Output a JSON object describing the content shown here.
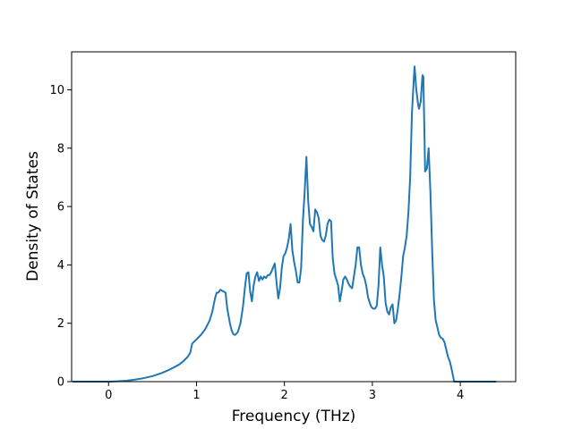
{
  "chart_data": {
    "type": "line",
    "title": "",
    "xlabel": "Frequency (THz)",
    "ylabel": "Density of States",
    "xlim": [
      -0.42,
      4.63
    ],
    "ylim": [
      0,
      11.3
    ],
    "xticks": [
      0,
      1,
      2,
      3,
      4
    ],
    "xtick_labels": [
      "0",
      "1",
      "2",
      "3",
      "4"
    ],
    "yticks": [
      0,
      2,
      4,
      6,
      8,
      10
    ],
    "ytick_labels": [
      "0",
      "2",
      "4",
      "6",
      "8",
      "10"
    ],
    "grid": false,
    "legend": "none",
    "series": [
      {
        "color": "#1f77b4",
        "points": [
          [
            -0.4,
            0.0
          ],
          [
            0.0,
            0.0
          ],
          [
            0.1,
            0.01
          ],
          [
            0.2,
            0.03
          ],
          [
            0.3,
            0.07
          ],
          [
            0.4,
            0.12
          ],
          [
            0.5,
            0.19
          ],
          [
            0.6,
            0.29
          ],
          [
            0.7,
            0.42
          ],
          [
            0.8,
            0.58
          ],
          [
            0.85,
            0.7
          ],
          [
            0.9,
            0.85
          ],
          [
            0.93,
            1.0
          ],
          [
            0.95,
            1.3
          ],
          [
            1.0,
            1.45
          ],
          [
            1.05,
            1.6
          ],
          [
            1.1,
            1.8
          ],
          [
            1.15,
            2.1
          ],
          [
            1.18,
            2.4
          ],
          [
            1.21,
            2.85
          ],
          [
            1.23,
            3.05
          ],
          [
            1.25,
            3.05
          ],
          [
            1.27,
            3.15
          ],
          [
            1.3,
            3.1
          ],
          [
            1.33,
            3.05
          ],
          [
            1.35,
            2.5
          ],
          [
            1.38,
            2.0
          ],
          [
            1.4,
            1.75
          ],
          [
            1.42,
            1.62
          ],
          [
            1.44,
            1.6
          ],
          [
            1.47,
            1.7
          ],
          [
            1.5,
            2.0
          ],
          [
            1.53,
            2.6
          ],
          [
            1.55,
            3.2
          ],
          [
            1.57,
            3.7
          ],
          [
            1.59,
            3.75
          ],
          [
            1.61,
            3.1
          ],
          [
            1.63,
            2.75
          ],
          [
            1.65,
            3.3
          ],
          [
            1.67,
            3.6
          ],
          [
            1.69,
            3.75
          ],
          [
            1.71,
            3.45
          ],
          [
            1.73,
            3.6
          ],
          [
            1.75,
            3.5
          ],
          [
            1.77,
            3.6
          ],
          [
            1.79,
            3.55
          ],
          [
            1.81,
            3.65
          ],
          [
            1.83,
            3.65
          ],
          [
            1.85,
            3.75
          ],
          [
            1.87,
            3.9
          ],
          [
            1.89,
            4.05
          ],
          [
            1.91,
            3.4
          ],
          [
            1.93,
            2.85
          ],
          [
            1.95,
            3.2
          ],
          [
            1.97,
            3.9
          ],
          [
            1.99,
            4.3
          ],
          [
            2.01,
            4.4
          ],
          [
            2.03,
            4.6
          ],
          [
            2.05,
            4.9
          ],
          [
            2.07,
            5.4
          ],
          [
            2.09,
            4.5
          ],
          [
            2.11,
            4.1
          ],
          [
            2.13,
            3.8
          ],
          [
            2.15,
            3.4
          ],
          [
            2.17,
            3.4
          ],
          [
            2.19,
            3.9
          ],
          [
            2.21,
            5.5
          ],
          [
            2.23,
            6.5
          ],
          [
            2.25,
            7.7
          ],
          [
            2.27,
            6.2
          ],
          [
            2.29,
            5.4
          ],
          [
            2.31,
            5.3
          ],
          [
            2.33,
            5.15
          ],
          [
            2.35,
            5.9
          ],
          [
            2.37,
            5.8
          ],
          [
            2.39,
            5.6
          ],
          [
            2.41,
            5.0
          ],
          [
            2.43,
            4.85
          ],
          [
            2.45,
            4.8
          ],
          [
            2.47,
            5.0
          ],
          [
            2.49,
            5.4
          ],
          [
            2.51,
            5.55
          ],
          [
            2.53,
            5.5
          ],
          [
            2.55,
            4.2
          ],
          [
            2.57,
            3.7
          ],
          [
            2.59,
            3.5
          ],
          [
            2.61,
            3.3
          ],
          [
            2.63,
            2.75
          ],
          [
            2.65,
            3.1
          ],
          [
            2.67,
            3.5
          ],
          [
            2.69,
            3.6
          ],
          [
            2.71,
            3.5
          ],
          [
            2.73,
            3.35
          ],
          [
            2.75,
            3.25
          ],
          [
            2.77,
            3.2
          ],
          [
            2.79,
            3.6
          ],
          [
            2.81,
            4.0
          ],
          [
            2.83,
            4.6
          ],
          [
            2.85,
            4.6
          ],
          [
            2.87,
            4.0
          ],
          [
            2.89,
            3.7
          ],
          [
            2.91,
            3.55
          ],
          [
            2.93,
            3.3
          ],
          [
            2.95,
            2.9
          ],
          [
            2.97,
            2.7
          ],
          [
            2.99,
            2.55
          ],
          [
            3.01,
            2.5
          ],
          [
            3.03,
            2.5
          ],
          [
            3.05,
            2.6
          ],
          [
            3.07,
            3.3
          ],
          [
            3.09,
            4.6
          ],
          [
            3.11,
            4.0
          ],
          [
            3.13,
            3.6
          ],
          [
            3.15,
            2.7
          ],
          [
            3.17,
            2.4
          ],
          [
            3.19,
            2.3
          ],
          [
            3.21,
            2.55
          ],
          [
            3.23,
            2.65
          ],
          [
            3.25,
            2.0
          ],
          [
            3.27,
            2.1
          ],
          [
            3.29,
            2.5
          ],
          [
            3.31,
            3.0
          ],
          [
            3.33,
            3.6
          ],
          [
            3.35,
            4.3
          ],
          [
            3.37,
            4.6
          ],
          [
            3.39,
            5.0
          ],
          [
            3.41,
            5.8
          ],
          [
            3.43,
            7.0
          ],
          [
            3.45,
            9.2
          ],
          [
            3.47,
            10.3
          ],
          [
            3.48,
            10.8
          ],
          [
            3.5,
            10.0
          ],
          [
            3.52,
            9.5
          ],
          [
            3.53,
            9.35
          ],
          [
            3.55,
            9.6
          ],
          [
            3.57,
            10.5
          ],
          [
            3.58,
            10.45
          ],
          [
            3.6,
            7.2
          ],
          [
            3.62,
            7.3
          ],
          [
            3.64,
            8.0
          ],
          [
            3.66,
            6.5
          ],
          [
            3.68,
            4.5
          ],
          [
            3.7,
            2.8
          ],
          [
            3.72,
            2.1
          ],
          [
            3.74,
            1.85
          ],
          [
            3.76,
            1.6
          ],
          [
            3.78,
            1.5
          ],
          [
            3.8,
            1.47
          ],
          [
            3.82,
            1.35
          ],
          [
            3.84,
            1.1
          ],
          [
            3.86,
            0.85
          ],
          [
            3.88,
            0.7
          ],
          [
            3.9,
            0.45
          ],
          [
            3.92,
            0.15
          ],
          [
            3.93,
            0.0
          ],
          [
            4.4,
            0.0
          ]
        ]
      }
    ]
  }
}
